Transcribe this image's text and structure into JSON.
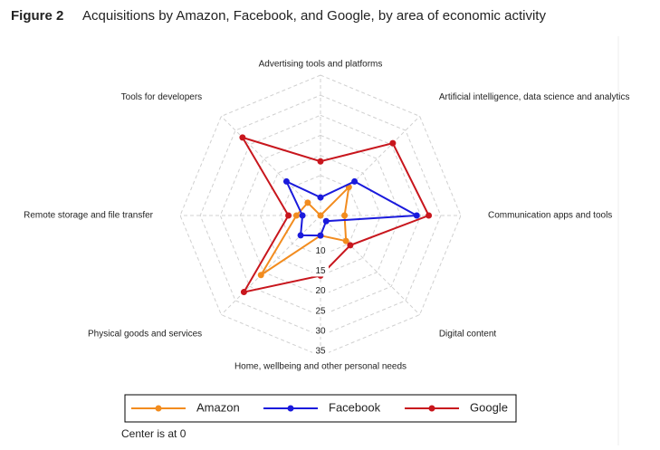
{
  "chart_data": {
    "type": "radar",
    "figure_label": "Figure 2",
    "title": "Acquisitions by Amazon, Facebook, and Google, by area of economic activity",
    "categories": [
      "Advertising tools and platforms",
      "Artificial intelligence, data science and analytics",
      "Communication apps and tools",
      "Digital content",
      "Home, wellbeing and other personal needs",
      "Physical goods and services",
      "Remote storage and file transfer",
      "Tools for developers"
    ],
    "series": [
      {
        "name": "Amazon",
        "color": "#f28c1f",
        "values": [
          0,
          10,
          6,
          9,
          5,
          21,
          6,
          4.5
        ]
      },
      {
        "name": "Facebook",
        "color": "#1a1adc",
        "values": [
          4.5,
          12,
          24,
          2,
          5,
          7,
          4.5,
          12
        ]
      },
      {
        "name": "Google",
        "color": "#c8161d",
        "values": [
          13.5,
          25.5,
          27,
          10.5,
          15,
          27,
          8,
          27.5
        ]
      }
    ],
    "rlim": [
      0,
      35
    ],
    "rticks": [
      10,
      15,
      20,
      25,
      30,
      35
    ],
    "grid": true,
    "note": "Center is at 0"
  }
}
